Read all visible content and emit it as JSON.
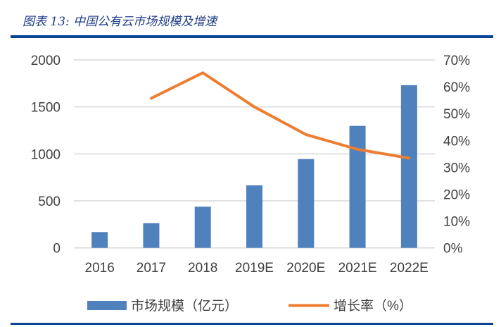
{
  "title": "图表 13:  中国公有云市场规模及增速",
  "colors": {
    "bar": "#4f81bd",
    "line": "#ed7d31",
    "grid": "#d9d9d9",
    "rule": "#0a4596",
    "title": "#1f3c88"
  },
  "chart_data": {
    "type": "bar+line",
    "categories": [
      "2016",
      "2017",
      "2018",
      "2019E",
      "2020E",
      "2021E",
      "2022E"
    ],
    "series": [
      {
        "name": "市场规模（亿元）",
        "type": "bar",
        "axis": "left",
        "values": [
          168,
          263,
          438,
          665,
          945,
          1298,
          1731
        ]
      },
      {
        "name": "增长率（%）",
        "type": "line",
        "axis": "right",
        "values": [
          null,
          55.7,
          65.2,
          52.5,
          42.2,
          36.7,
          33.4
        ]
      }
    ],
    "left_axis": {
      "ylim": [
        0,
        2000
      ],
      "ticks": [
        "0",
        "500",
        "1000",
        "1500",
        "2000"
      ]
    },
    "right_axis": {
      "ylim": [
        0,
        70
      ],
      "ticks": [
        "0%",
        "10%",
        "20%",
        "30%",
        "40%",
        "50%",
        "60%",
        "70%"
      ]
    },
    "grid": true,
    "legend": "bottom"
  }
}
